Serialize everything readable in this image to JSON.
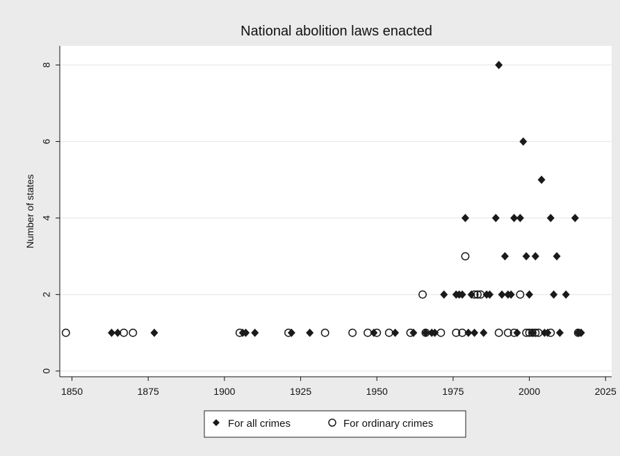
{
  "chart_data": {
    "type": "scatter",
    "title": "National abolition laws enacted",
    "xlabel": "",
    "ylabel": "Number of states",
    "xlim": [
      1846,
      2027
    ],
    "ylim": [
      -0.15,
      8.5
    ],
    "xticks": [
      1850,
      1875,
      1900,
      1925,
      1950,
      1975,
      2000,
      2025
    ],
    "yticks": [
      0,
      2,
      4,
      6,
      8
    ],
    "grid": "horizontal",
    "legend_position": "bottom",
    "series": [
      {
        "name": "For all crimes",
        "marker": "diamond",
        "color": "#1a1a1a",
        "points": [
          [
            1863,
            1
          ],
          [
            1865,
            1
          ],
          [
            1877,
            1
          ],
          [
            1906,
            1
          ],
          [
            1907,
            1
          ],
          [
            1910,
            1
          ],
          [
            1922,
            1
          ],
          [
            1928,
            1
          ],
          [
            1949,
            1
          ],
          [
            1956,
            1
          ],
          [
            1962,
            1
          ],
          [
            1966,
            1
          ],
          [
            1968,
            1
          ],
          [
            1969,
            1
          ],
          [
            1972,
            2
          ],
          [
            1976,
            2
          ],
          [
            1977,
            2
          ],
          [
            1978,
            2
          ],
          [
            1979,
            4
          ],
          [
            1980,
            1
          ],
          [
            1981,
            2
          ],
          [
            1982,
            1
          ],
          [
            1985,
            1
          ],
          [
            1986,
            2
          ],
          [
            1987,
            2
          ],
          [
            1989,
            4
          ],
          [
            1990,
            8
          ],
          [
            1991,
            2
          ],
          [
            1992,
            3
          ],
          [
            1993,
            2
          ],
          [
            1994,
            2
          ],
          [
            1995,
            4
          ],
          [
            1996,
            1
          ],
          [
            1997,
            4
          ],
          [
            1998,
            6
          ],
          [
            1999,
            3
          ],
          [
            2000,
            2
          ],
          [
            2001,
            1
          ],
          [
            2002,
            3
          ],
          [
            2004,
            5
          ],
          [
            2005,
            1
          ],
          [
            2006,
            1
          ],
          [
            2007,
            4
          ],
          [
            2008,
            2
          ],
          [
            2009,
            3
          ],
          [
            2010,
            1
          ],
          [
            2012,
            2
          ],
          [
            2015,
            4
          ],
          [
            2016,
            1
          ],
          [
            2017,
            1
          ]
        ]
      },
      {
        "name": "For ordinary crimes",
        "marker": "circle",
        "color": "#1a1a1a",
        "points": [
          [
            1848,
            1
          ],
          [
            1867,
            1
          ],
          [
            1870,
            1
          ],
          [
            1905,
            1
          ],
          [
            1921,
            1
          ],
          [
            1933,
            1
          ],
          [
            1942,
            1
          ],
          [
            1947,
            1
          ],
          [
            1950,
            1
          ],
          [
            1954,
            1
          ],
          [
            1961,
            1
          ],
          [
            1965,
            2
          ],
          [
            1966,
            1
          ],
          [
            1971,
            1
          ],
          [
            1976,
            1
          ],
          [
            1978,
            1
          ],
          [
            1979,
            3
          ],
          [
            1982,
            2
          ],
          [
            1983,
            2
          ],
          [
            1984,
            2
          ],
          [
            1990,
            1
          ],
          [
            1993,
            1
          ],
          [
            1995,
            1
          ],
          [
            1997,
            2
          ],
          [
            1999,
            1
          ],
          [
            2000,
            1
          ],
          [
            2001,
            1
          ],
          [
            2002,
            1
          ],
          [
            2003,
            1
          ],
          [
            2007,
            1
          ],
          [
            2016,
            1
          ]
        ]
      }
    ]
  }
}
